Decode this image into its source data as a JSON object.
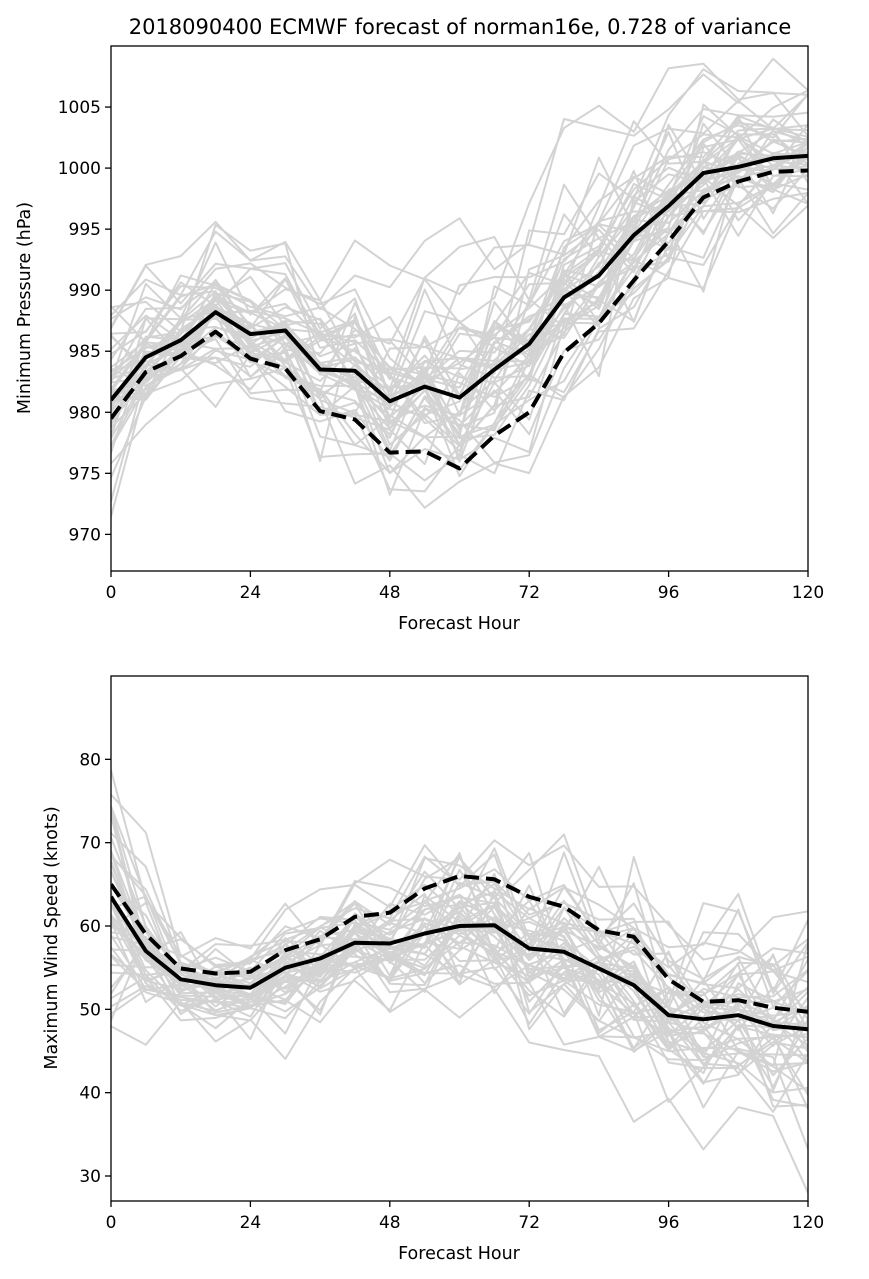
{
  "title": "2018090400 ECMWF forecast of norman16e, 0.728 of variance",
  "colors": {
    "mean": "#000000",
    "ensemble": "#d3d3d3"
  },
  "chart_data": [
    {
      "type": "line",
      "xlabel": "Forecast Hour",
      "ylabel": "Minimum Pressure (hPa)",
      "xlim": [
        0,
        120
      ],
      "ylim": [
        967,
        1010
      ],
      "xticks": [
        0,
        24,
        48,
        72,
        96,
        120
      ],
      "yticks": [
        970,
        975,
        980,
        985,
        990,
        995,
        1000,
        1005
      ],
      "grid": false,
      "x": [
        0,
        6,
        12,
        18,
        24,
        30,
        36,
        42,
        48,
        54,
        60,
        66,
        72,
        78,
        84,
        90,
        96,
        102,
        108,
        114,
        120
      ],
      "series": [
        {
          "style": "solid",
          "values": [
            981.0,
            984.5,
            985.9,
            988.2,
            986.4,
            986.7,
            983.5,
            983.4,
            980.9,
            982.1,
            981.2,
            983.5,
            985.6,
            989.4,
            991.2,
            994.5,
            996.9,
            999.6,
            1000.1,
            1000.8,
            1001.0
          ]
        },
        {
          "style": "dashed",
          "values": [
            979.5,
            983.3,
            984.6,
            986.6,
            984.4,
            983.6,
            980.1,
            979.4,
            976.7,
            976.8,
            975.4,
            978.1,
            980.0,
            984.9,
            987.3,
            990.8,
            994.0,
            997.6,
            998.9,
            999.7,
            999.8
          ]
        }
      ],
      "ensemble_count": 50,
      "ensemble_spread": [
        4.5,
        3.0,
        2.8,
        3.2,
        3.2,
        3.5,
        3.8,
        4.0,
        4.2,
        4.6,
        5.0,
        5.0,
        5.2,
        5.2,
        5.0,
        4.8,
        4.5,
        4.0,
        3.5,
        3.0,
        3.0
      ]
    },
    {
      "type": "line",
      "xlabel": "Forecast Hour",
      "ylabel": "Maximum Wind Speed (knots)",
      "xlim": [
        0,
        120
      ],
      "ylim": [
        27,
        90
      ],
      "xticks": [
        0,
        24,
        48,
        72,
        96,
        120
      ],
      "yticks": [
        30,
        40,
        50,
        60,
        70,
        80
      ],
      "grid": false,
      "x": [
        0,
        6,
        12,
        18,
        24,
        30,
        36,
        42,
        48,
        54,
        60,
        66,
        72,
        78,
        84,
        90,
        96,
        102,
        108,
        114,
        120
      ],
      "series": [
        {
          "style": "solid",
          "values": [
            63.5,
            57.0,
            53.6,
            52.9,
            52.6,
            55.0,
            56.1,
            58.0,
            57.9,
            59.1,
            60.0,
            60.1,
            57.3,
            56.9,
            54.9,
            52.9,
            49.3,
            48.8,
            49.3,
            48.0,
            47.6
          ]
        },
        {
          "style": "dashed",
          "values": [
            65.0,
            59.0,
            54.9,
            54.3,
            54.5,
            57.1,
            58.4,
            61.1,
            61.6,
            64.5,
            66.0,
            65.6,
            63.5,
            62.3,
            59.5,
            58.7,
            53.6,
            50.9,
            51.1,
            50.2,
            49.7
          ]
        }
      ],
      "ensemble_count": 50,
      "ensemble_spread": [
        8.0,
        4.5,
        3.0,
        3.0,
        3.0,
        3.5,
        4.0,
        4.5,
        4.8,
        5.2,
        5.5,
        5.8,
        6.0,
        6.0,
        6.2,
        6.5,
        6.5,
        6.5,
        6.5,
        7.0,
        7.5
      ]
    }
  ]
}
